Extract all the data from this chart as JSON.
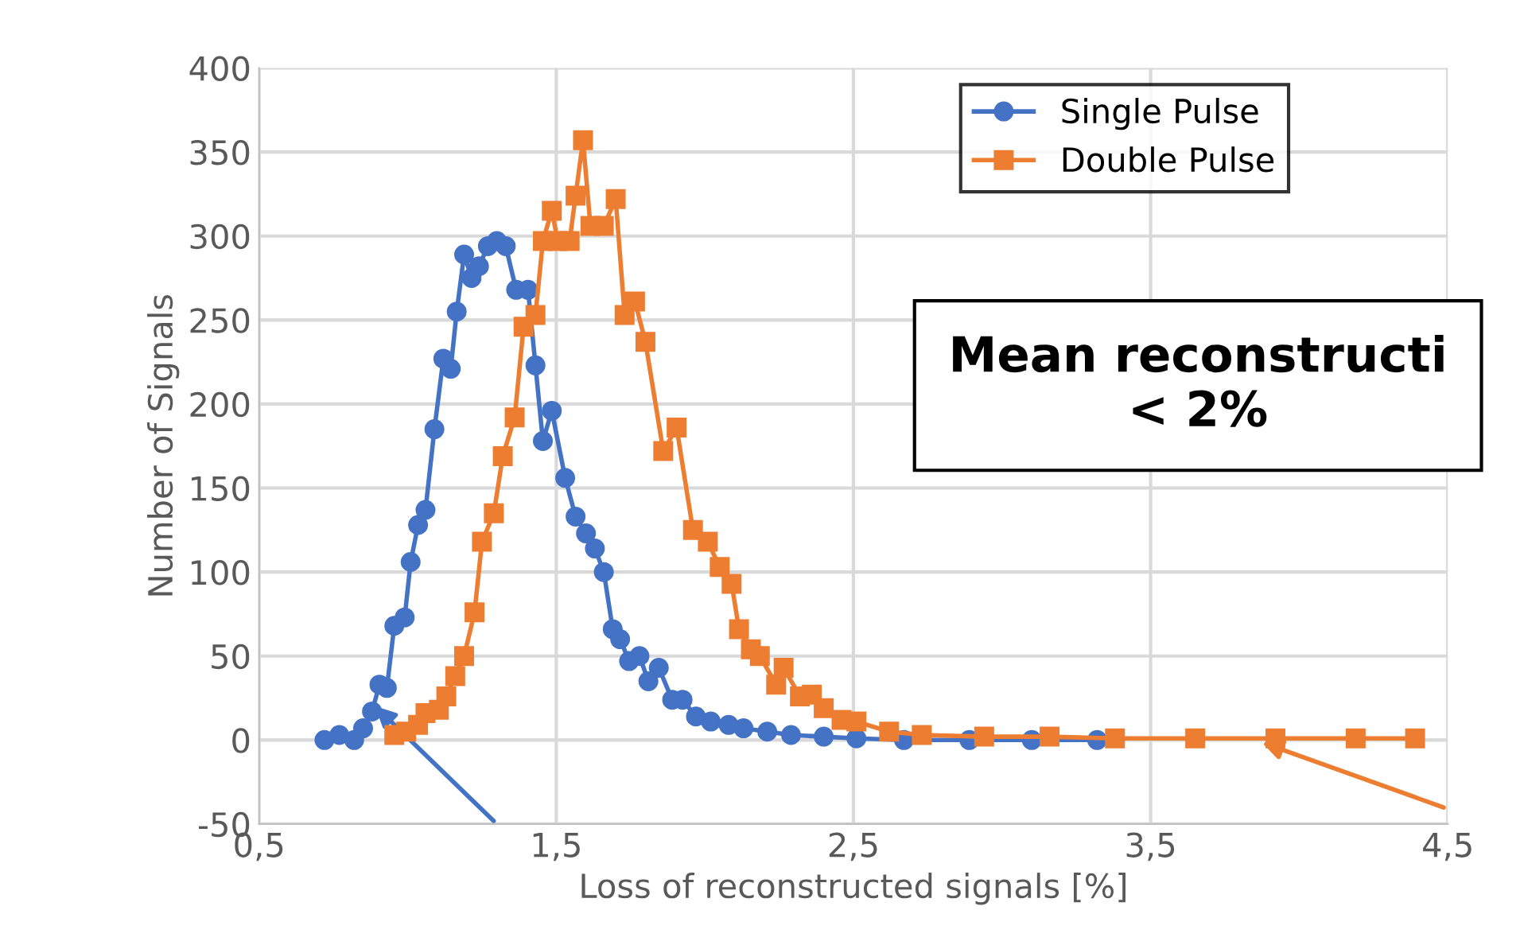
{
  "chart_data": {
    "type": "line",
    "xlabel": "Loss of reconstructed signals [%]",
    "ylabel": "Number of Signals",
    "xlim": [
      0.5,
      4.5
    ],
    "xticks": [
      {
        "value": 0.5,
        "label": "0,5"
      },
      {
        "value": 1.5,
        "label": "1,5"
      },
      {
        "value": 2.5,
        "label": "2,5"
      },
      {
        "value": 3.5,
        "label": "3,5"
      },
      {
        "value": 4.5,
        "label": "4,5"
      }
    ],
    "ylim": [
      -50,
      400
    ],
    "yticks": [
      -50,
      0,
      50,
      100,
      150,
      200,
      250,
      300,
      350,
      400
    ],
    "grid": true,
    "legend": "top right",
    "annotations": [
      "Mean reconstructi\n< 2%"
    ],
    "series": [
      {
        "name": "Single Pulse",
        "color": "#4472c4",
        "marker": "circle",
        "x": [
          0.72,
          0.77,
          0.82,
          0.85,
          0.88,
          0.905,
          0.93,
          0.955,
          0.99,
          1.01,
          1.035,
          1.06,
          1.09,
          1.12,
          1.145,
          1.165,
          1.19,
          1.215,
          1.24,
          1.27,
          1.3,
          1.33,
          1.365,
          1.405,
          1.43,
          1.455,
          1.485,
          1.53,
          1.565,
          1.6,
          1.63,
          1.66,
          1.69,
          1.715,
          1.745,
          1.78,
          1.81,
          1.845,
          1.89,
          1.925,
          1.97,
          2.02,
          2.08,
          2.13,
          2.21,
          2.29,
          2.4,
          2.51,
          2.67,
          2.89,
          3.1,
          3.32
        ],
        "values": [
          0,
          3,
          0,
          7,
          17,
          33,
          31,
          68,
          73,
          106,
          128,
          137,
          185,
          227,
          221,
          255,
          289,
          275,
          282,
          294,
          297,
          294,
          268,
          268,
          223,
          178,
          196,
          156,
          133,
          123,
          114,
          100,
          66,
          60,
          47,
          50,
          35,
          43,
          24,
          24,
          14,
          11,
          9,
          7,
          5,
          3,
          2,
          1,
          0,
          0,
          0,
          0
        ]
      },
      {
        "name": "Double Pulse",
        "color": "#ed7d31",
        "marker": "square",
        "x": [
          0.955,
          0.995,
          1.035,
          1.06,
          1.105,
          1.13,
          1.16,
          1.19,
          1.225,
          1.25,
          1.29,
          1.32,
          1.36,
          1.39,
          1.43,
          1.455,
          1.485,
          1.505,
          1.545,
          1.565,
          1.59,
          1.615,
          1.66,
          1.7,
          1.73,
          1.765,
          1.8,
          1.86,
          1.905,
          1.96,
          2.01,
          2.05,
          2.09,
          2.115,
          2.155,
          2.185,
          2.24,
          2.265,
          2.32,
          2.36,
          2.4,
          2.46,
          2.51,
          2.62,
          2.73,
          2.94,
          3.16,
          3.38,
          3.65,
          3.92,
          4.19,
          4.39
        ],
        "values": [
          3,
          5,
          9,
          16,
          18,
          26,
          38,
          50,
          76,
          118,
          135,
          169,
          192,
          246,
          253,
          297,
          315,
          297,
          297,
          324,
          357,
          306,
          306,
          322,
          253,
          261,
          237,
          172,
          186,
          125,
          118,
          103,
          93,
          66,
          54,
          50,
          33,
          43,
          26,
          27,
          19,
          12,
          11,
          5,
          3,
          2,
          2,
          1,
          1,
          1,
          1,
          1
        ]
      }
    ]
  }
}
